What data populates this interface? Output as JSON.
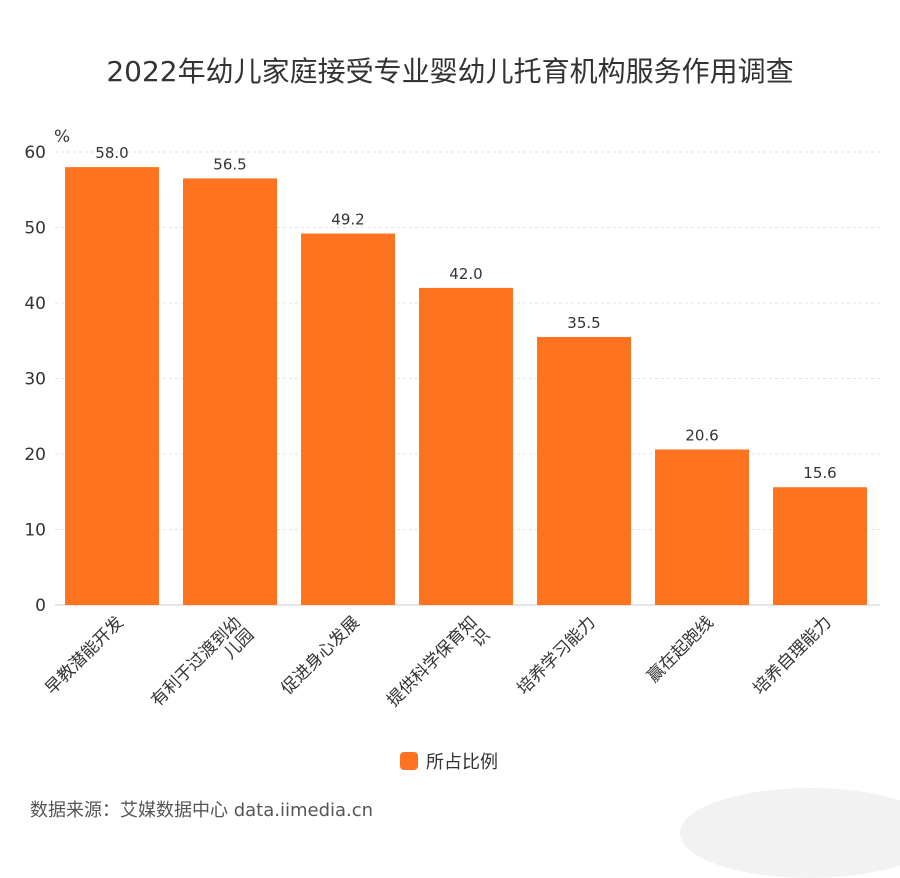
{
  "chart_data": {
    "type": "bar",
    "title": "2022年幼儿家庭接受专业婴幼儿托育机构服务作用调查",
    "unit": "%",
    "categories": [
      "早教潜能开发",
      "有利于过渡到幼儿园",
      "促进身心发展",
      "提供科学保育知识",
      "培养学习能力",
      "赢在起跑线",
      "培养自理能力"
    ],
    "series": [
      {
        "name": "所占比例",
        "values": [
          58.0,
          56.5,
          49.2,
          42.0,
          35.5,
          20.6,
          15.6
        ],
        "color": "#fd7320"
      }
    ],
    "ylim": [
      0,
      60
    ],
    "yticks": [
      0,
      10,
      20,
      30,
      40,
      50,
      60
    ],
    "grid": true,
    "legend_position": "bottom"
  },
  "source": "数据来源：艾媒数据中心 data.iimedia.cn"
}
